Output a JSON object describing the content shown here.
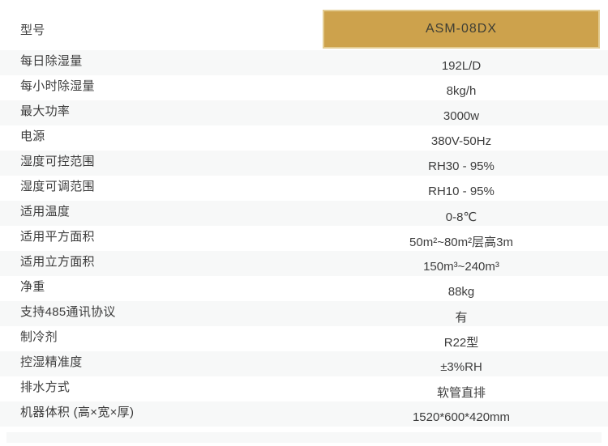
{
  "table": {
    "header": {
      "label": "型号",
      "value": "ASM-08DX"
    },
    "rows": [
      {
        "label": "每日除湿量",
        "value": "192L/D"
      },
      {
        "label": "每小时除湿量",
        "value": "8kg/h"
      },
      {
        "label": "最大功率",
        "value": "3000w"
      },
      {
        "label": "电源",
        "value": "380V-50Hz"
      },
      {
        "label": "湿度可控范围",
        "value": "RH30 - 95%"
      },
      {
        "label": "湿度可调范围",
        "value": "RH10 - 95%"
      },
      {
        "label": "适用温度",
        "value": "0-8℃"
      },
      {
        "label": "适用平方面积",
        "value": "50m²~80m²层高3m"
      },
      {
        "label": "适用立方面积",
        "value": "150m³~240m³"
      },
      {
        "label": "净重",
        "value": "88kg"
      },
      {
        "label": "支持485通讯协议",
        "value": "有"
      },
      {
        "label": "制冷剂",
        "value": "R22型"
      },
      {
        "label": "控湿精准度",
        "value": "±3%RH"
      },
      {
        "label": "排水方式",
        "value": "软管直排"
      },
      {
        "label": "机器体积 (高×宽×厚)",
        "value": "1520*600*420mm"
      }
    ]
  },
  "colors": {
    "header_bg": "#cda24c",
    "header_border": "#e3cc92",
    "header_text": "#3e3e35",
    "body_text": "#3d3d3d",
    "stripe_bg": "#f7f8f8",
    "page_bg": "#ffffff"
  }
}
